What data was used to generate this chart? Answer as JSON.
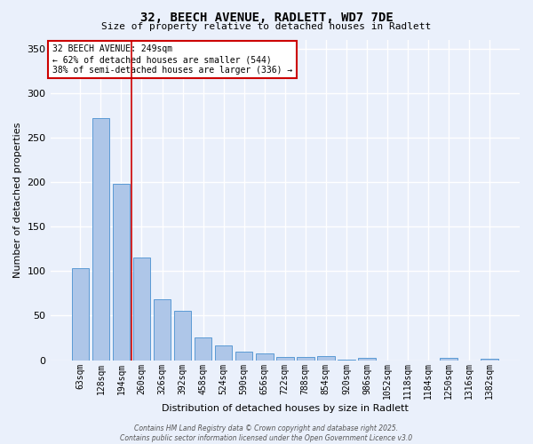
{
  "title_line1": "32, BEECH AVENUE, RADLETT, WD7 7DE",
  "title_line2": "Size of property relative to detached houses in Radlett",
  "xlabel": "Distribution of detached houses by size in Radlett",
  "ylabel": "Number of detached properties",
  "categories": [
    "63sqm",
    "128sqm",
    "194sqm",
    "260sqm",
    "326sqm",
    "392sqm",
    "458sqm",
    "524sqm",
    "590sqm",
    "656sqm",
    "722sqm",
    "788sqm",
    "854sqm",
    "920sqm",
    "986sqm",
    "1052sqm",
    "1118sqm",
    "1184sqm",
    "1250sqm",
    "1316sqm",
    "1382sqm"
  ],
  "values": [
    103,
    272,
    198,
    115,
    68,
    55,
    26,
    17,
    10,
    8,
    4,
    4,
    5,
    1,
    3,
    0,
    0,
    0,
    3,
    0,
    2
  ],
  "bar_color": "#aec6e8",
  "bar_edge_color": "#5b9bd5",
  "background_color": "#eaf0fb",
  "grid_color": "#ffffff",
  "vline_color": "#cc0000",
  "annotation_box_text": "32 BEECH AVENUE: 249sqm\n← 62% of detached houses are smaller (544)\n38% of semi-detached houses are larger (336) →",
  "annotation_box_color": "#cc0000",
  "footer_text": "Contains HM Land Registry data © Crown copyright and database right 2025.\nContains public sector information licensed under the Open Government Licence v3.0",
  "ylim": [
    0,
    360
  ],
  "yticks": [
    0,
    50,
    100,
    150,
    200,
    250,
    300,
    350
  ]
}
